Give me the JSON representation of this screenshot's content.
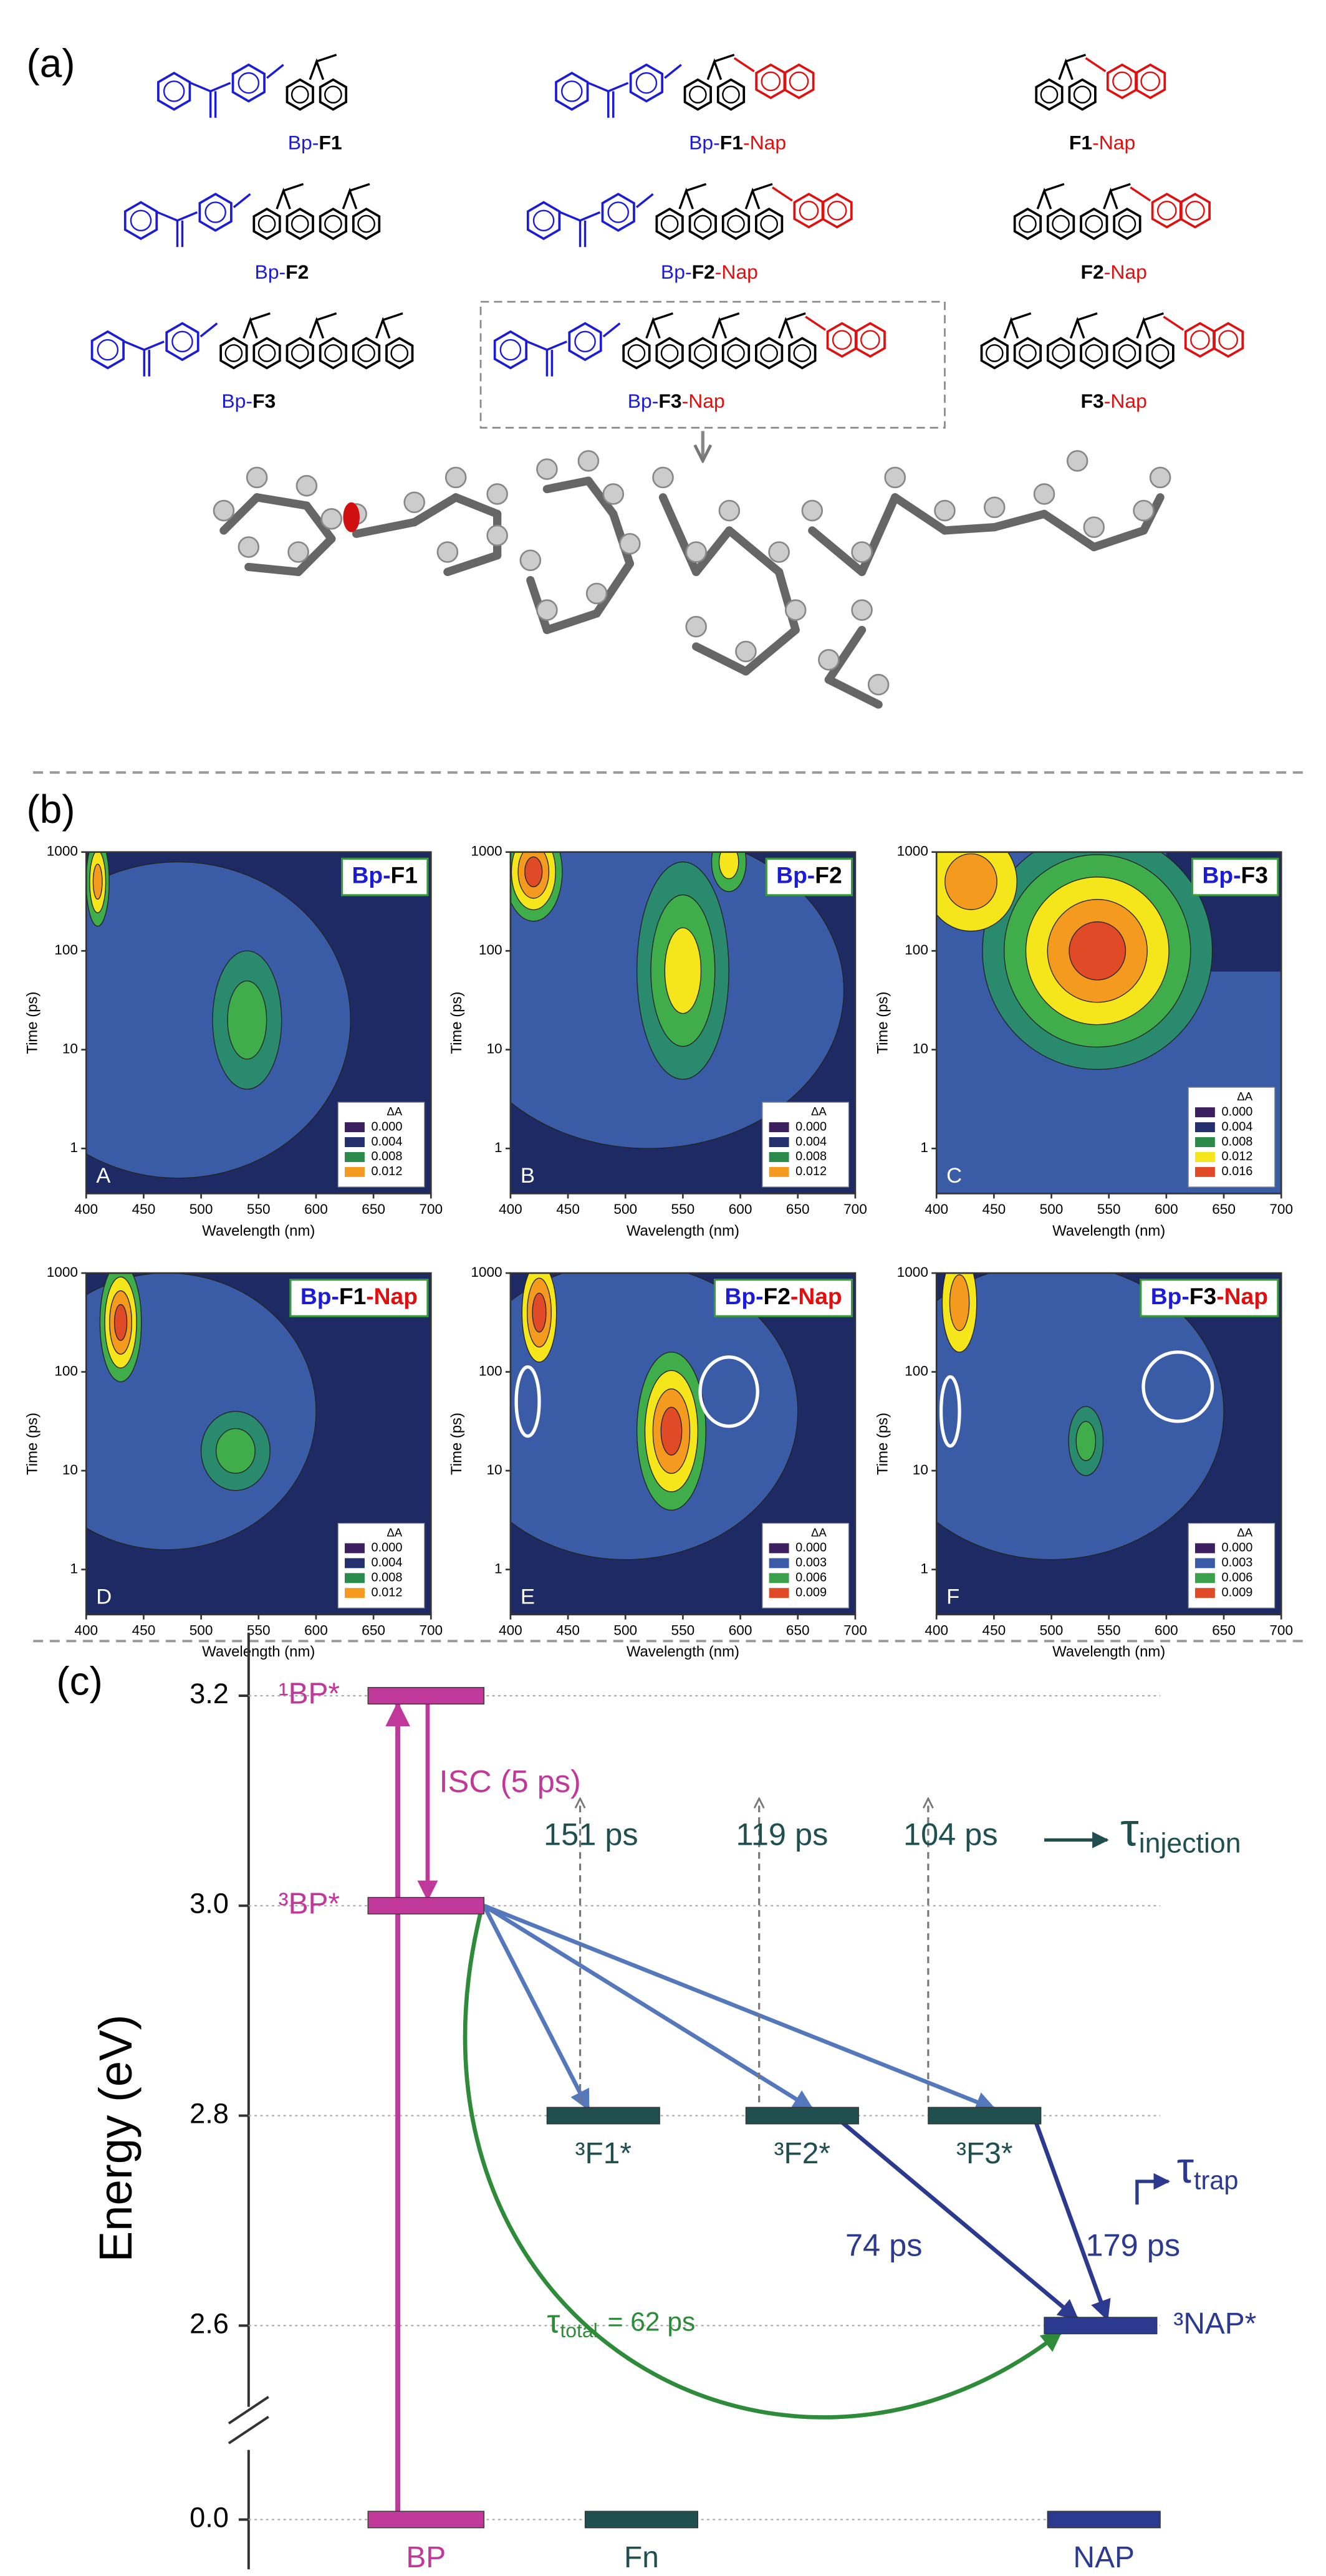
{
  "colors": {
    "bp": "#1c1cd6",
    "core": "#000000",
    "nap": "#e01010"
  },
  "panel_a": {
    "label": "(a)",
    "molecules": [
      {
        "bp": "Bp-",
        "core": "F1"
      },
      {
        "bp": "Bp-",
        "core": "F1",
        "nap": "-Nap"
      },
      {
        "core": "F1",
        "nap": "-Nap"
      },
      {
        "bp": "Bp-",
        "core": "F2"
      },
      {
        "bp": "Bp-",
        "core": "F2",
        "nap": "-Nap"
      },
      {
        "core": "F2",
        "nap": "-Nap"
      },
      {
        "bp": "Bp-",
        "core": "F3"
      },
      {
        "bp": "Bp-",
        "core": "F3",
        "nap": "-Nap"
      },
      {
        "core": "F3",
        "nap": "-Nap"
      }
    ]
  },
  "panel_b": {
    "label": "(b)",
    "xlabel": "Wavelength (nm)",
    "ylabel": "Time (ps)",
    "legend_title": "ΔA",
    "xlim": [
      400,
      700
    ],
    "xticks": [
      400,
      450,
      500,
      550,
      600,
      650,
      700
    ],
    "ylim": [
      0.35,
      1000
    ],
    "yticks": [
      1,
      10,
      100,
      1000
    ],
    "log_y": true,
    "plots": [
      {
        "letter": "A",
        "title": {
          "bp": "Bp-",
          "core": "F1"
        },
        "legend": [
          {
            "value": 0,
            "label": "0.000",
            "color": "#3b1f5e"
          },
          {
            "value": 0.004,
            "label": "0.004",
            "color": "#24306e"
          },
          {
            "value": 0.008,
            "label": "0.008",
            "color": "#2a8a4a"
          },
          {
            "value": 0.012,
            "label": "0.012",
            "color": "#f39a1f"
          }
        ]
      },
      {
        "letter": "B",
        "title": {
          "bp": "Bp-",
          "core": "F2"
        },
        "legend": [
          {
            "value": 0,
            "label": "0.000",
            "color": "#3b1f5e"
          },
          {
            "value": 0.004,
            "label": "0.004",
            "color": "#24306e"
          },
          {
            "value": 0.008,
            "label": "0.008",
            "color": "#2a8a4a"
          },
          {
            "value": 0.012,
            "label": "0.012",
            "color": "#f39a1f"
          }
        ]
      },
      {
        "letter": "C",
        "title": {
          "bp": "Bp-",
          "core": "F3"
        },
        "legend": [
          {
            "value": 0,
            "label": "0.000",
            "color": "#3b1f5e"
          },
          {
            "value": 0.004,
            "label": "0.004",
            "color": "#24306e"
          },
          {
            "value": 0.008,
            "label": "0.008",
            "color": "#2a8a4a"
          },
          {
            "value": 0.012,
            "label": "0.012",
            "color": "#f5e51b"
          },
          {
            "value": 0.016,
            "label": "0.016",
            "color": "#e04a26"
          }
        ]
      },
      {
        "letter": "D",
        "title": {
          "bp": "Bp-",
          "core": "F1",
          "nap": "-Nap"
        },
        "legend": [
          {
            "value": 0,
            "label": "0.000",
            "color": "#3b1f5e"
          },
          {
            "value": 0.004,
            "label": "0.004",
            "color": "#24306e"
          },
          {
            "value": 0.008,
            "label": "0.008",
            "color": "#2a8a4a"
          },
          {
            "value": 0.012,
            "label": "0.012",
            "color": "#f39a1f"
          }
        ]
      },
      {
        "letter": "E",
        "title": {
          "bp": "Bp-",
          "core": "F2",
          "nap": "-Nap"
        },
        "legend": [
          {
            "value": 0,
            "label": "0.000",
            "color": "#3b1f5e"
          },
          {
            "value": 0.003,
            "label": "0.003",
            "color": "#3a5ba6"
          },
          {
            "value": 0.006,
            "label": "0.006",
            "color": "#3aa04a"
          },
          {
            "value": 0.009,
            "label": "0.009",
            "color": "#e04a26"
          }
        ]
      },
      {
        "letter": "F",
        "title": {
          "bp": "Bp-",
          "core": "F3",
          "nap": "-Nap"
        },
        "legend": [
          {
            "value": 0,
            "label": "0.000",
            "color": "#3b1f5e"
          },
          {
            "value": 0.003,
            "label": "0.003",
            "color": "#3a5ba6"
          },
          {
            "value": 0.006,
            "label": "0.006",
            "color": "#3aa04a"
          },
          {
            "value": 0.009,
            "label": "0.009",
            "color": "#e04a26"
          }
        ]
      }
    ]
  },
  "panel_c": {
    "label": "(c)",
    "ylabel": "Energy (eV)",
    "yticks": [
      3.2,
      {
        "value": 3,
        "label": "3.0"
      },
      2.8,
      2.6,
      {
        "value": 0,
        "label": "0.0"
      }
    ],
    "levels": [
      {
        "label": "¹BP*",
        "energy": 3.2,
        "color": "#c0399a"
      },
      {
        "label": "³BP*",
        "energy": 3,
        "color": "#c0399a"
      },
      {
        "label": "³F1*",
        "energy": 2.8,
        "color": "#1f4f4f"
      },
      {
        "label": "³F2*",
        "energy": 2.8,
        "color": "#1f4f4f"
      },
      {
        "label": "³F3*",
        "energy": 2.8,
        "color": "#1f4f4f"
      },
      {
        "label": "³NAP*",
        "energy": 2.6,
        "color": "#2b3a8f"
      },
      {
        "label": "BP",
        "energy": 0,
        "color": "#c0399a"
      },
      {
        "label": "Fn",
        "energy": 0,
        "color": "#1f4f4f"
      },
      {
        "label": "NAP",
        "energy": 0,
        "color": "#2b3a8f"
      }
    ],
    "annotations": {
      "isc": "ISC (5 ps)",
      "inj": [
        "151 ps",
        "119 ps",
        "104 ps"
      ],
      "tau_injection": {
        "symbol": "τ",
        "subscript": "injection"
      },
      "trap": [
        "74 ps",
        "179 ps"
      ],
      "tau_trap": {
        "symbol": "τ",
        "subscript": "trap"
      },
      "tau_total": {
        "symbol": "τ",
        "subscript": "total",
        "text": "= 62 ps"
      }
    }
  }
}
